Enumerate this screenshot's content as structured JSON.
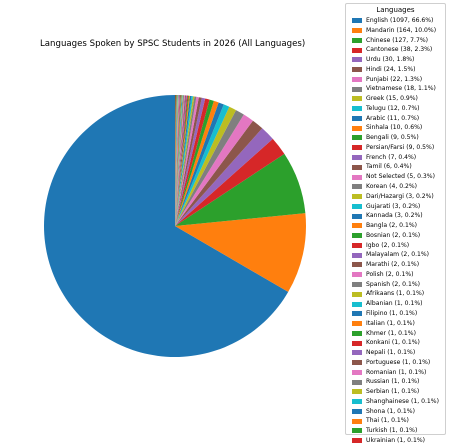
{
  "chart_data": {
    "type": "pie",
    "title": "Languages Spoken by SPSC Students in 2026 (All Languages)",
    "legend_title": "Languages",
    "legend_position": "right",
    "slices": [
      {
        "label": "English (1097, 66.6%)",
        "value": 1097,
        "color": "#1f77b4"
      },
      {
        "label": "Mandarin (164, 10.0%)",
        "value": 164,
        "color": "#ff7f0e"
      },
      {
        "label": "Chinese (127, 7.7%)",
        "value": 127,
        "color": "#2ca02c"
      },
      {
        "label": "Cantonese (38, 2.3%)",
        "value": 38,
        "color": "#d62728"
      },
      {
        "label": "Urdu (30, 1.8%)",
        "value": 30,
        "color": "#9467bd"
      },
      {
        "label": "Hindi (24, 1.5%)",
        "value": 24,
        "color": "#8c564b"
      },
      {
        "label": "Punjabi (22, 1.3%)",
        "value": 22,
        "color": "#e377c2"
      },
      {
        "label": "Vietnamese (18, 1.1%)",
        "value": 18,
        "color": "#7f7f7f"
      },
      {
        "label": "Greek (15, 0.9%)",
        "value": 15,
        "color": "#bcbd22"
      },
      {
        "label": "Telugu (12, 0.7%)",
        "value": 12,
        "color": "#17becf"
      },
      {
        "label": "Arabic (11, 0.7%)",
        "value": 11,
        "color": "#1f77b4"
      },
      {
        "label": "Sinhala (10, 0.6%)",
        "value": 10,
        "color": "#ff7f0e"
      },
      {
        "label": "Bengali (9, 0.5%)",
        "value": 9,
        "color": "#2ca02c"
      },
      {
        "label": "Persian/Farsi (9, 0.5%)",
        "value": 9,
        "color": "#d62728"
      },
      {
        "label": "French (7, 0.4%)",
        "value": 7,
        "color": "#9467bd"
      },
      {
        "label": "Tamil (6, 0.4%)",
        "value": 6,
        "color": "#8c564b"
      },
      {
        "label": "Not Selected (5, 0.3%)",
        "value": 5,
        "color": "#e377c2"
      },
      {
        "label": "Korean (4, 0.2%)",
        "value": 4,
        "color": "#7f7f7f"
      },
      {
        "label": "Dari/Hazargi (3, 0.2%)",
        "value": 3,
        "color": "#bcbd22"
      },
      {
        "label": "Gujarati (3, 0.2%)",
        "value": 3,
        "color": "#17becf"
      },
      {
        "label": "Kannada (3, 0.2%)",
        "value": 3,
        "color": "#1f77b4"
      },
      {
        "label": "Bangla (2, 0.1%)",
        "value": 2,
        "color": "#ff7f0e"
      },
      {
        "label": "Bosnian (2, 0.1%)",
        "value": 2,
        "color": "#2ca02c"
      },
      {
        "label": "Igbo (2, 0.1%)",
        "value": 2,
        "color": "#d62728"
      },
      {
        "label": "Malayalam (2, 0.1%)",
        "value": 2,
        "color": "#9467bd"
      },
      {
        "label": "Marathi (2, 0.1%)",
        "value": 2,
        "color": "#8c564b"
      },
      {
        "label": "Polish (2, 0.1%)",
        "value": 2,
        "color": "#e377c2"
      },
      {
        "label": "Spanish (2, 0.1%)",
        "value": 2,
        "color": "#7f7f7f"
      },
      {
        "label": "Afrikaans (1, 0.1%)",
        "value": 1,
        "color": "#bcbd22"
      },
      {
        "label": "Albanian (1, 0.1%)",
        "value": 1,
        "color": "#17becf"
      },
      {
        "label": "Filipino (1, 0.1%)",
        "value": 1,
        "color": "#1f77b4"
      },
      {
        "label": "Italian (1, 0.1%)",
        "value": 1,
        "color": "#ff7f0e"
      },
      {
        "label": "Khmer (1, 0.1%)",
        "value": 1,
        "color": "#2ca02c"
      },
      {
        "label": "Konkani (1, 0.1%)",
        "value": 1,
        "color": "#d62728"
      },
      {
        "label": "Nepali (1, 0.1%)",
        "value": 1,
        "color": "#9467bd"
      },
      {
        "label": "Portuguese (1, 0.1%)",
        "value": 1,
        "color": "#8c564b"
      },
      {
        "label": "Romanian (1, 0.1%)",
        "value": 1,
        "color": "#e377c2"
      },
      {
        "label": "Russian (1, 0.1%)",
        "value": 1,
        "color": "#7f7f7f"
      },
      {
        "label": "Serbian (1, 0.1%)",
        "value": 1,
        "color": "#bcbd22"
      },
      {
        "label": "Shanghainese (1, 0.1%)",
        "value": 1,
        "color": "#17becf"
      },
      {
        "label": "Shona (1, 0.1%)",
        "value": 1,
        "color": "#1f77b4"
      },
      {
        "label": "Thai (1, 0.1%)",
        "value": 1,
        "color": "#ff7f0e"
      },
      {
        "label": "Turkish (1, 0.1%)",
        "value": 1,
        "color": "#2ca02c"
      },
      {
        "label": "Ukrainian (1, 0.1%)",
        "value": 1,
        "color": "#d62728"
      }
    ]
  }
}
